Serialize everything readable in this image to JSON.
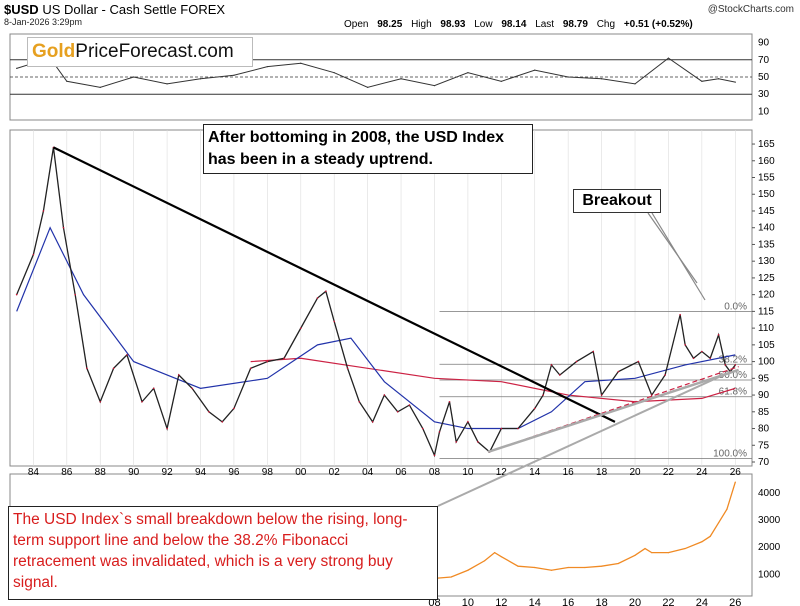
{
  "header": {
    "symbol": "$USD",
    "name": "US Dollar - Cash Settle FOREX",
    "date": "8-Jan-2026 3:29pm",
    "copyright": "@StockCharts.com",
    "open_label": "Open",
    "open": "98.25",
    "high_label": "High",
    "high": "98.93",
    "low_label": "Low",
    "low": "98.14",
    "last_label": "Last",
    "last": "98.79",
    "chg_label": "Chg",
    "chg": "+0.51 (+0.52%)"
  },
  "logo": {
    "gold": "Gold",
    "rest": "PriceForecast.com"
  },
  "annotations": {
    "top_note": "After bottoming in 2008, the USD Index has been in a steady uptrend.",
    "breakout": "Breakout",
    "bottom_note": "The USD Index`s small breakdown below the rising, long-term support line and below the 38.2% Fibonacci retracement was invalidated, which is a very strong buy signal."
  },
  "colors": {
    "price": "#222222",
    "price_down": "#cc1133",
    "ma_long": "#cc2244",
    "ma_short": "#2233aa",
    "rsi": "#333333",
    "gold": "#f08a24",
    "note_red": "#d81d1d",
    "logo_gold": "#e6a020"
  },
  "chart_data": [
    {
      "type": "line",
      "panel": "rsi",
      "y_ticks": [
        10,
        30,
        50,
        70,
        90
      ],
      "reference_lines": [
        30,
        50,
        70
      ],
      "ylim": [
        0,
        100
      ],
      "x": [
        1983,
        1985,
        1986,
        1988,
        1990,
        1992,
        1994,
        1996,
        1998,
        2000,
        2002,
        2004,
        2006,
        2008,
        2010,
        2012,
        2014,
        2016,
        2018,
        2020,
        2022,
        2024,
        2025,
        2026
      ],
      "values": [
        60,
        72,
        45,
        38,
        50,
        42,
        48,
        52,
        62,
        66,
        55,
        38,
        48,
        40,
        55,
        45,
        58,
        50,
        48,
        42,
        72,
        45,
        48,
        44
      ]
    },
    {
      "type": "line",
      "panel": "usd_index",
      "y_ticks": [
        70,
        75,
        80,
        85,
        90,
        95,
        100,
        105,
        110,
        115,
        120,
        125,
        130,
        135,
        140,
        145,
        150,
        155,
        160,
        165
      ],
      "ylim": [
        70,
        168
      ],
      "x_ticks": [
        "84",
        "86",
        "88",
        "90",
        "92",
        "94",
        "96",
        "98",
        "00",
        "02",
        "04",
        "06",
        "08",
        "10",
        "12",
        "14",
        "16",
        "18",
        "20",
        "22",
        "24",
        "26"
      ],
      "fib_levels": [
        {
          "label": "0.0%",
          "value": 115
        },
        {
          "label": "38.2%",
          "value": 99.2
        },
        {
          "label": "50.0%",
          "value": 94.5
        },
        {
          "label": "61.8%",
          "value": 89.5
        },
        {
          "label": "100.0%",
          "value": 71
        }
      ],
      "x": [
        1983.0,
        1984.0,
        1984.6,
        1985.2,
        1985.8,
        1986.5,
        1987.2,
        1988.0,
        1988.8,
        1989.6,
        1990.5,
        1991.2,
        1992.0,
        1992.7,
        1993.5,
        1994.5,
        1995.3,
        1996.0,
        1997.0,
        1998.0,
        1999.0,
        2000.0,
        2001.0,
        2001.5,
        2002.0,
        2002.8,
        2003.5,
        2004.3,
        2005.0,
        2005.8,
        2006.5,
        2007.3,
        2008.0,
        2008.3,
        2008.9,
        2009.3,
        2010.0,
        2010.6,
        2011.3,
        2012.0,
        2013.0,
        2014.0,
        2014.5,
        2015.0,
        2015.5,
        2016.5,
        2017.5,
        2018.0,
        2019.0,
        2020.2,
        2021.0,
        2021.8,
        2022.7,
        2023.0,
        2023.5,
        2024.0,
        2024.5,
        2025.0,
        2025.4,
        2025.7,
        2026.0
      ],
      "values": [
        120,
        132,
        145,
        164,
        140,
        120,
        98,
        88,
        98,
        102,
        88,
        92,
        80,
        96,
        92,
        85,
        82,
        86,
        98,
        100,
        101,
        110,
        119,
        121,
        112,
        98,
        88,
        82,
        90,
        85,
        87,
        80,
        72,
        79,
        88,
        76,
        82,
        76,
        73,
        80,
        80,
        86,
        90,
        99,
        96,
        100,
        103,
        90,
        97,
        100,
        90,
        96,
        114,
        105,
        101,
        103,
        101,
        108,
        99,
        97,
        99
      ],
      "ma_long": {
        "x": [
          1997,
          2000,
          2004,
          2008,
          2012,
          2016,
          2020,
          2024,
          2026
        ],
        "values": [
          100,
          101,
          98,
          95,
          94,
          90,
          88,
          89,
          92
        ]
      },
      "ma_short": {
        "x": [
          1983,
          1985,
          1987,
          1990,
          1994,
          1998,
          2001,
          2003,
          2005,
          2008,
          2010,
          2013,
          2015,
          2017,
          2020,
          2023,
          2026
        ],
        "values": [
          115,
          140,
          120,
          100,
          92,
          95,
          105,
          107,
          94,
          82,
          80,
          80,
          85,
          94,
          95,
          99,
          102
        ]
      }
    },
    {
      "type": "line",
      "panel": "gold",
      "y_ticks": [
        1000,
        2000,
        3000,
        4000
      ],
      "ylim": [
        200,
        4700
      ],
      "x_ticks": [
        "08",
        "10",
        "12",
        "14",
        "16",
        "18",
        "20",
        "22",
        "24",
        "26"
      ],
      "x": [
        2008,
        2009,
        2010,
        2011,
        2011.6,
        2012,
        2013,
        2014,
        2015,
        2016,
        2017,
        2018,
        2019,
        2020,
        2020.6,
        2021,
        2022,
        2023,
        2024,
        2024.5,
        2025,
        2025.5,
        2026
      ],
      "values": [
        850,
        900,
        1150,
        1500,
        1800,
        1650,
        1300,
        1250,
        1150,
        1250,
        1250,
        1300,
        1400,
        1700,
        1950,
        1800,
        1800,
        1950,
        2200,
        2400,
        2900,
        3400,
        4400
      ]
    }
  ]
}
